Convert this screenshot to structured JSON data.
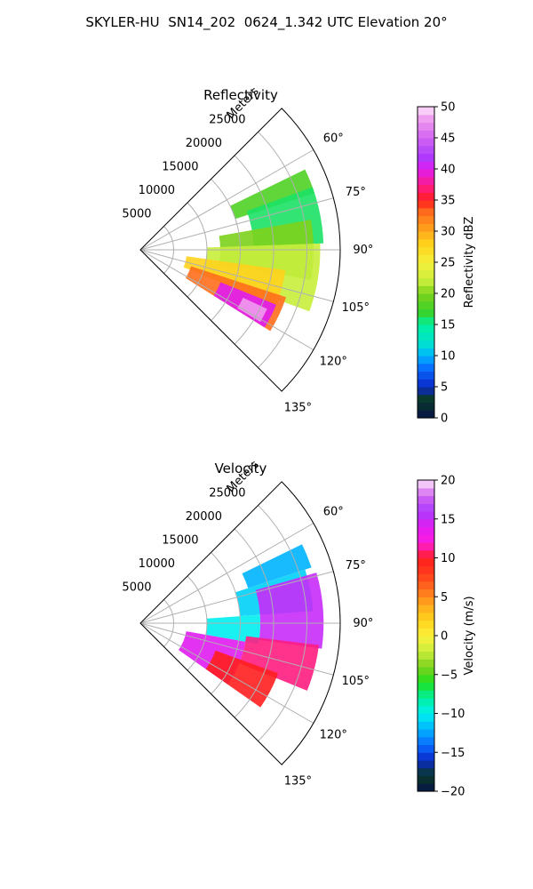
{
  "figure": {
    "suptitle": "SKYLER-HU  SN14_202  0624_1.342 UTC Elevation 20°"
  },
  "chart_data": [
    {
      "type": "heatmap",
      "projection": "polar-sector",
      "title": "Reflectivity",
      "radial_label": "Meters",
      "range_ticks": [
        5000,
        10000,
        15000,
        20000,
        25000
      ],
      "range_labels": [
        "5000",
        "10000",
        "15000",
        "20000",
        "25000"
      ],
      "rmax": 30000,
      "azimuth_ticks": [
        60,
        75,
        90,
        105,
        120,
        135
      ],
      "azimuth_labels": [
        "60°",
        "75°",
        "90°",
        "105°",
        "120°",
        "135°"
      ],
      "azimuth_range": [
        45,
        135
      ],
      "grid": true,
      "colorbar": {
        "label": "Reflectivity dBZ",
        "min": 0,
        "max": 50,
        "ticks": [
          0,
          5,
          10,
          15,
          20,
          25,
          30,
          35,
          40,
          45,
          50
        ],
        "tick_labels": [
          "0",
          "5",
          "10",
          "15",
          "20",
          "25",
          "30",
          "35",
          "40",
          "45",
          "50"
        ]
      },
      "echo_regions": [
        {
          "azimuth": [
            64,
            72
          ],
          "range": [
            15000,
            27500
          ],
          "value": 18
        },
        {
          "azimuth": [
            70,
            88
          ],
          "range": [
            17000,
            27500
          ],
          "value": 16
        },
        {
          "azimuth": [
            80,
            100
          ],
          "range": [
            12000,
            26000
          ],
          "value": 20
        },
        {
          "azimuth": [
            88,
            110
          ],
          "range": [
            10000,
            27000
          ],
          "value": 22
        },
        {
          "azimuth": [
            98,
            112
          ],
          "range": [
            7000,
            22000
          ],
          "value": 28
        },
        {
          "azimuth": [
            108,
            122
          ],
          "range": [
            8000,
            23000
          ],
          "value": 33
        },
        {
          "azimuth": [
            112,
            122
          ],
          "range": [
            13000,
            22000
          ],
          "value": 40
        },
        {
          "azimuth": [
            115,
            121
          ],
          "range": [
            17000,
            21000
          ],
          "value": 48
        }
      ]
    },
    {
      "type": "heatmap",
      "projection": "polar-sector",
      "title": "Velocity",
      "radial_label": "Meters",
      "range_ticks": [
        5000,
        10000,
        15000,
        20000,
        25000
      ],
      "range_labels": [
        "5000",
        "10000",
        "15000",
        "20000",
        "25000"
      ],
      "rmax": 30000,
      "azimuth_ticks": [
        60,
        75,
        90,
        105,
        120,
        135
      ],
      "azimuth_labels": [
        "60°",
        "75°",
        "90°",
        "105°",
        "120°",
        "135°"
      ],
      "azimuth_range": [
        45,
        135
      ],
      "grid": true,
      "colorbar": {
        "label": "Velocity (m/s)",
        "min": -20,
        "max": 20,
        "ticks": [
          -20,
          -15,
          -10,
          -5,
          0,
          5,
          10,
          15,
          20
        ],
        "tick_labels": [
          "−20",
          "−15",
          "−10",
          "−5",
          "0",
          "5",
          "10",
          "15",
          "20"
        ]
      },
      "echo_regions": [
        {
          "azimuth": [
            64,
            72
          ],
          "range": [
            17000,
            27000
          ],
          "value": -12
        },
        {
          "azimuth": [
            72,
            86
          ],
          "range": [
            15000,
            26000
          ],
          "value": -11
        },
        {
          "azimuth": [
            86,
            100
          ],
          "range": [
            10000,
            18000
          ],
          "value": -10
        },
        {
          "azimuth": [
            74,
            98
          ],
          "range": [
            18000,
            27500
          ],
          "value": 15
        },
        {
          "azimuth": [
            97,
            112
          ],
          "range": [
            16000,
            27000
          ],
          "value": 11
        },
        {
          "azimuth": [
            100,
            125
          ],
          "range": [
            7000,
            16000
          ],
          "value": 14
        },
        {
          "azimuth": [
            110,
            125
          ],
          "range": [
            12000,
            22000
          ],
          "value": 10
        }
      ]
    }
  ]
}
